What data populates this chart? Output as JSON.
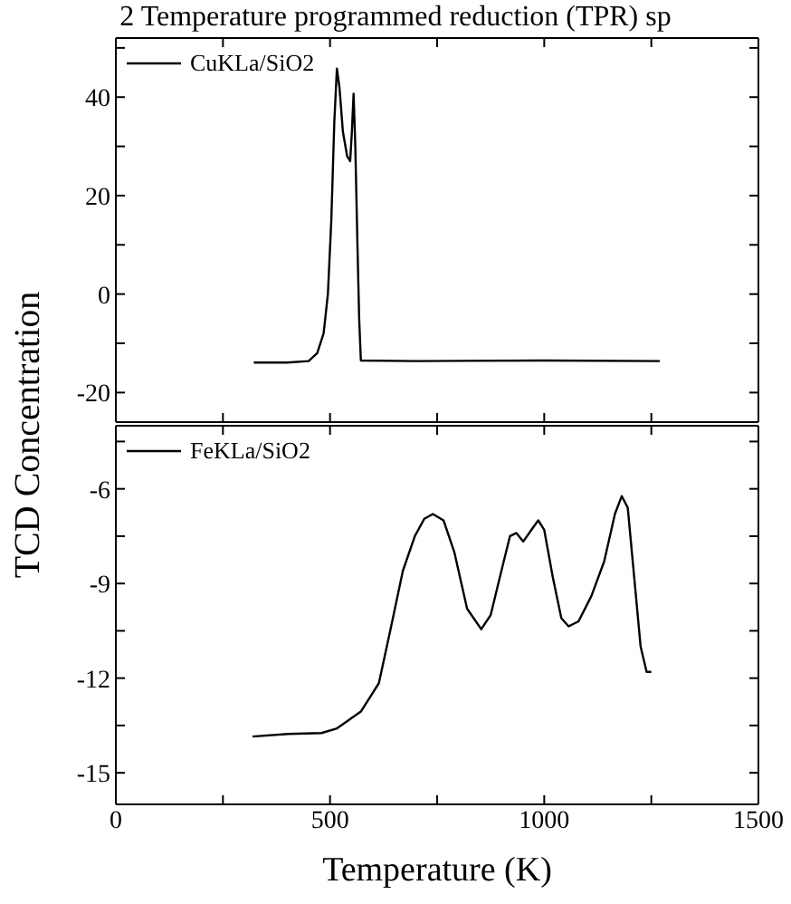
{
  "chart_data": [
    {
      "type": "line",
      "title": "2 Temperature programmed reduction (TPR) sp",
      "ylabel": "TCD Concentration",
      "legend": "top left",
      "marker": "none",
      "tick_labels": "y",
      "x": [
        322,
        400,
        450,
        470,
        485,
        495,
        503,
        510,
        516,
        522,
        530,
        540,
        547,
        551,
        555,
        559,
        564,
        568,
        572,
        700,
        1000,
        1270
      ],
      "series": [
        {
          "name": "CuKLa/SiO2",
          "color": "#000000",
          "values": [
            -13.9,
            -13.9,
            -13.6,
            -12,
            -8,
            0,
            15,
            35,
            45.8,
            42,
            33,
            28,
            27,
            33,
            40.7,
            30,
            10,
            -5,
            -13.5,
            -13.6,
            -13.5,
            -13.6
          ]
        }
      ],
      "xlim": [
        0,
        1500
      ],
      "xticks": [
        0,
        {
          "value": 250,
          "label": null
        },
        500,
        {
          "value": 750,
          "label": null
        },
        1000,
        {
          "value": 1250,
          "label": null
        },
        1500
      ],
      "ylim": [
        -26,
        52
      ],
      "yticks": [
        -20,
        {
          "value": -10,
          "label": null
        },
        0,
        {
          "value": 10,
          "label": null
        },
        20,
        {
          "value": 30,
          "label": null
        },
        40,
        {
          "value": 50,
          "label": null
        }
      ]
    },
    {
      "type": "line",
      "xlabel": "Temperature (K)",
      "legend": "top left",
      "marker": "none",
      "x": [
        319,
        403,
        480,
        515,
        572,
        614,
        642,
        670,
        698,
        720,
        740,
        765,
        790,
        820,
        853,
        875,
        900,
        920,
        935,
        951,
        970,
        986,
        1000,
        1020,
        1040,
        1057,
        1080,
        1110,
        1140,
        1165,
        1181,
        1195,
        1210,
        1225,
        1239,
        1250
      ],
      "series": [
        {
          "name": "FeKLa/SiO2",
          "color": "#000000",
          "values": [
            -13.85,
            -13.77,
            -13.74,
            -13.6,
            -13.06,
            -12.16,
            -10.4,
            -8.6,
            -7.5,
            -6.95,
            -6.8,
            -7.0,
            -8.0,
            -9.8,
            -10.45,
            -10.0,
            -8.6,
            -7.5,
            -7.4,
            -7.67,
            -7.3,
            -7.0,
            -7.3,
            -8.8,
            -10.1,
            -10.36,
            -10.2,
            -9.4,
            -8.3,
            -6.8,
            -6.23,
            -6.6,
            -8.8,
            -11.0,
            -11.8,
            -11.8
          ]
        }
      ],
      "xlim": [
        0,
        1500
      ],
      "xticks": [
        0,
        {
          "value": 250,
          "label": null
        },
        500,
        {
          "value": 750,
          "label": null
        },
        1000,
        {
          "value": 1250,
          "label": null
        },
        1500
      ],
      "ylim": [
        -16,
        -4
      ],
      "yticks": [
        -15,
        {
          "value": -13.5,
          "label": null
        },
        -12,
        {
          "value": -10.5,
          "label": null
        },
        -9,
        {
          "value": -7.5,
          "label": null
        },
        -6,
        {
          "value": -4.5,
          "label": null
        }
      ]
    }
  ]
}
